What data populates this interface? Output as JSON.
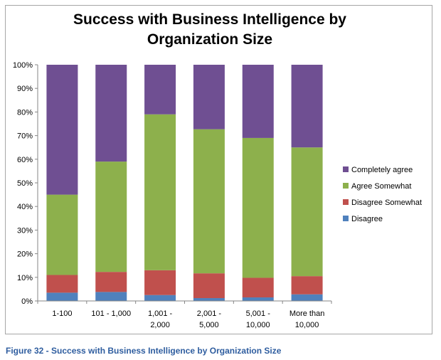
{
  "chart_data": {
    "type": "bar",
    "stacked": true,
    "title": "Success with Business Intelligence by Organization Size",
    "categories": [
      "1-100",
      "101 - 1,000",
      "1,001 - 2,000",
      "2,001 - 5,000",
      "5,001 - 10,000",
      "More than 10,000"
    ],
    "category_lines": [
      [
        "1-100"
      ],
      [
        "101 - 1,000"
      ],
      [
        "1,001 -",
        "2,000"
      ],
      [
        "2,001 -",
        "5,000"
      ],
      [
        "5,001 -",
        "10,000"
      ],
      [
        "More than",
        "10,000"
      ]
    ],
    "series": [
      {
        "name": "Disagree",
        "color": "#4f81bd",
        "values": [
          3.5,
          3.8,
          2.5,
          1.2,
          1.5,
          2.8
        ]
      },
      {
        "name": "Disagree Somewhat",
        "color": "#c0504d",
        "values": [
          7.5,
          8.5,
          10.5,
          10.5,
          8.3,
          7.7
        ]
      },
      {
        "name": "Agree Somewhat",
        "color": "#8db04c",
        "values": [
          34.0,
          46.7,
          66.0,
          61.0,
          59.2,
          54.5
        ]
      },
      {
        "name": "Completely agree",
        "color": "#6f4f92",
        "values": [
          55.0,
          41.0,
          21.0,
          27.3,
          31.0,
          35.0
        ]
      }
    ],
    "ylim": [
      0,
      100
    ],
    "yticks": [
      "0%",
      "10%",
      "20%",
      "30%",
      "40%",
      "50%",
      "60%",
      "70%",
      "80%",
      "90%",
      "100%"
    ],
    "grid": false,
    "legend_position": "right"
  },
  "caption": "Figure 32 - Success with Business Intelligence by Organization Size"
}
